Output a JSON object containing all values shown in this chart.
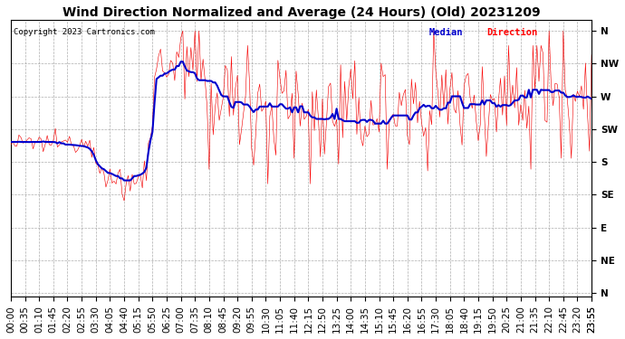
{
  "title": "Wind Direction Normalized and Average (24 Hours) (Old) 20231209",
  "copyright": "Copyright 2023 Cartronics.com",
  "ytick_labels": [
    "N",
    "NW",
    "W",
    "SW",
    "S",
    "SE",
    "E",
    "NE",
    "N"
  ],
  "ytick_values": [
    360,
    315,
    270,
    225,
    180,
    135,
    90,
    45,
    0
  ],
  "ylim": [
    -5,
    375
  ],
  "background_color": "#ffffff",
  "plot_bg_color": "#ffffff",
  "grid_color": "#999999",
  "red_color": "#ff0000",
  "blue_color": "#0000cc",
  "black_color": "#000000",
  "title_fontsize": 10,
  "copyright_fontsize": 6.5,
  "tick_fontsize": 7.5,
  "legend_fontsize": 7.5
}
